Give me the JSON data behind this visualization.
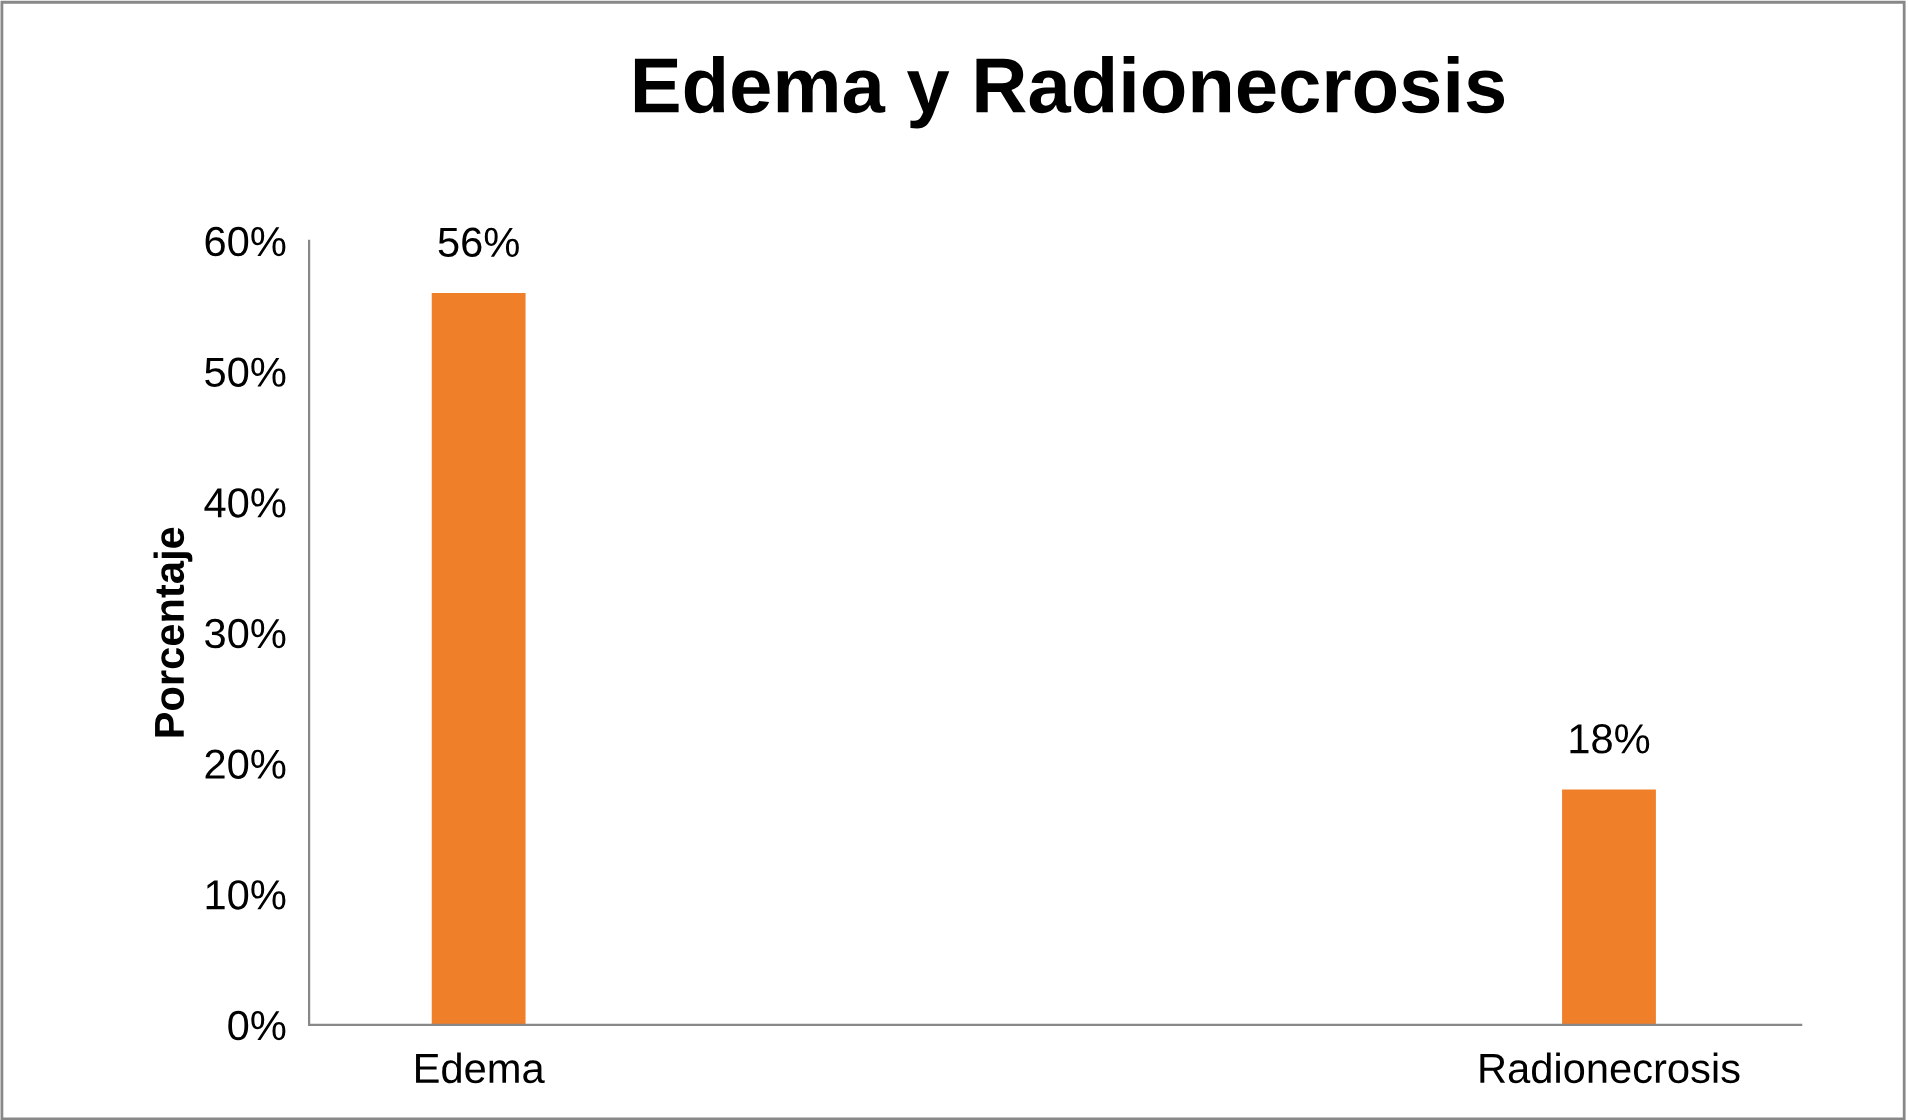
{
  "chart_data": {
    "type": "bar",
    "title": "Edema y Radionecrosis",
    "ylabel": "Porcentaje",
    "categories": [
      "Edema",
      "Radionecrosis"
    ],
    "values": [
      56,
      18
    ],
    "color": "#f07f2a",
    "value_labels": [
      "56%",
      "18%"
    ],
    "ylim": [
      0,
      60
    ],
    "yticks": [
      {
        "value": 0,
        "label": "0%"
      },
      {
        "value": 10,
        "label": "10%"
      },
      {
        "value": 20,
        "label": "20%"
      },
      {
        "value": 30,
        "label": "30%"
      },
      {
        "value": 40,
        "label": "40%"
      },
      {
        "value": 50,
        "label": "50%"
      },
      {
        "value": 60,
        "label": "60%"
      }
    ],
    "grid": false,
    "legend": false
  }
}
